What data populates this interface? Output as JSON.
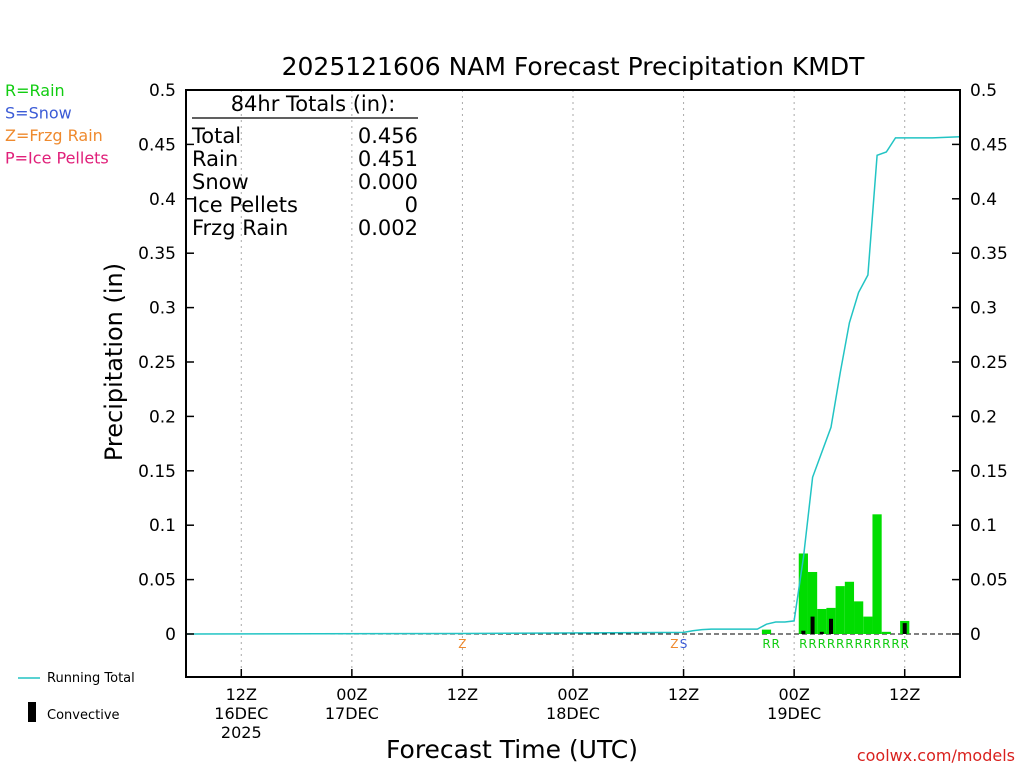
{
  "chart_data": {
    "type": "bar",
    "title": "2025121606 NAM Forecast Precipitation KMDT",
    "ylabel": "Precipitation (in)",
    "xlabel": "Forecast Time (UTC)",
    "ylim": [
      -0.04,
      0.5
    ],
    "yticks": [
      0,
      0.05,
      0.1,
      0.15,
      0.2,
      0.25,
      0.3,
      0.35,
      0.4,
      0.45,
      0.5
    ],
    "ytick_labels": [
      "0",
      "0.05",
      "0.1",
      "0.15",
      "0.2",
      "0.25",
      "0.3",
      "0.35",
      "0.4",
      "0.45",
      "0.5"
    ],
    "xlim_hours": [
      6,
      90
    ],
    "xticks": [
      {
        "hour": 12,
        "lines": [
          "12Z",
          "16DEC",
          "2025"
        ]
      },
      {
        "hour": 24,
        "lines": [
          "00Z",
          "17DEC"
        ]
      },
      {
        "hour": 36,
        "lines": [
          "12Z"
        ]
      },
      {
        "hour": 48,
        "lines": [
          "00Z",
          "18DEC"
        ]
      },
      {
        "hour": 60,
        "lines": [
          "12Z"
        ]
      },
      {
        "hour": 72,
        "lines": [
          "00Z",
          "19DEC"
        ]
      },
      {
        "hour": 84,
        "lines": [
          "12Z"
        ]
      }
    ],
    "precip_bars": {
      "color": "#00dd00",
      "hours": [
        69,
        73,
        74,
        75,
        76,
        77,
        78,
        79,
        80,
        81,
        82,
        84
      ],
      "values": [
        0.004,
        0.074,
        0.057,
        0.023,
        0.024,
        0.044,
        0.048,
        0.03,
        0.016,
        0.11,
        0.002,
        0.012
      ]
    },
    "convective_bars": {
      "color": "#000000",
      "hours": [
        73,
        74,
        75,
        76,
        84
      ],
      "values": [
        0.003,
        0.016,
        0.002,
        0.014,
        0.01
      ]
    },
    "running_total": {
      "color": "#22c4c4",
      "hours": [
        6,
        36,
        60,
        61,
        62,
        63,
        68,
        69,
        70,
        71,
        72,
        73,
        74,
        75,
        76,
        77,
        78,
        79,
        80,
        81,
        82,
        83,
        84,
        87,
        90
      ],
      "values": [
        0.0,
        0.0005,
        0.0015,
        0.003,
        0.004,
        0.0045,
        0.0045,
        0.009,
        0.011,
        0.011,
        0.012,
        0.07,
        0.144,
        0.167,
        0.19,
        0.24,
        0.286,
        0.314,
        0.33,
        0.44,
        0.443,
        0.456,
        0.456,
        0.456,
        0.457
      ]
    },
    "ptype_markers": [
      {
        "hour": 36,
        "letter": "Z",
        "color": "#ef8a2e"
      },
      {
        "hour": 59,
        "letter": "Z",
        "color": "#ef8a2e"
      },
      {
        "hour": 60,
        "letter": "S",
        "color": "#3b5bd6"
      },
      {
        "hour": 69,
        "letter": "R",
        "color": "#11cc11"
      },
      {
        "hour": 70,
        "letter": "R",
        "color": "#11cc11"
      },
      {
        "hour": 73,
        "letter": "R",
        "color": "#11cc11"
      },
      {
        "hour": 74,
        "letter": "R",
        "color": "#11cc11"
      },
      {
        "hour": 75,
        "letter": "R",
        "color": "#11cc11"
      },
      {
        "hour": 76,
        "letter": "R",
        "color": "#11cc11"
      },
      {
        "hour": 77,
        "letter": "R",
        "color": "#11cc11"
      },
      {
        "hour": 78,
        "letter": "R",
        "color": "#11cc11"
      },
      {
        "hour": 79,
        "letter": "R",
        "color": "#11cc11"
      },
      {
        "hour": 80,
        "letter": "R",
        "color": "#11cc11"
      },
      {
        "hour": 81,
        "letter": "R",
        "color": "#11cc11"
      },
      {
        "hour": 82,
        "letter": "R",
        "color": "#11cc11"
      },
      {
        "hour": 83,
        "letter": "R",
        "color": "#11cc11"
      },
      {
        "hour": 84,
        "letter": "R",
        "color": "#11cc11"
      }
    ],
    "totals_box": {
      "header": "84hr Totals (in):",
      "rows": [
        {
          "label": "Total",
          "value": "0.456"
        },
        {
          "label": "Rain",
          "value": "0.451"
        },
        {
          "label": "Snow",
          "value": "0.000"
        },
        {
          "label": "Ice Pellets",
          "value": "0"
        },
        {
          "label": "Frzg Rain",
          "value": "0.002"
        }
      ]
    },
    "ptype_legend": [
      {
        "text": "R=Rain",
        "color": "#11cc11"
      },
      {
        "text": "S=Snow",
        "color": "#3b5bd6"
      },
      {
        "text": "Z=Frzg Rain",
        "color": "#ef8a2e"
      },
      {
        "text": "P=Ice Pellets",
        "color": "#e0207a"
      }
    ],
    "bottom_legend": {
      "running_total": "Running Total",
      "convective": "Convective"
    },
    "credit": "coolwx.com/models"
  }
}
